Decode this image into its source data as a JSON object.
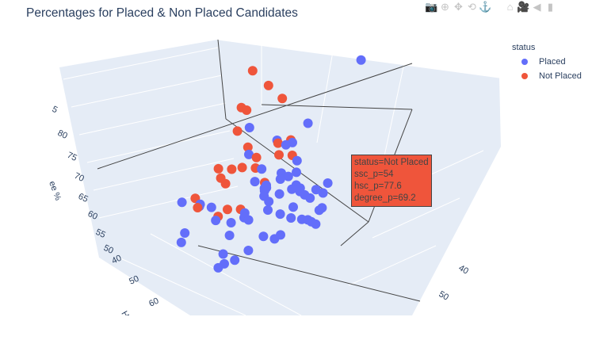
{
  "title": "Percentages for Placed & Non Placed Candidates",
  "modebar": [
    {
      "name": "camera-icon",
      "glyph": "📷"
    },
    {
      "name": "zoom-icon",
      "glyph": "⊕"
    },
    {
      "name": "pan-icon",
      "glyph": "✥"
    },
    {
      "name": "orbit-rotation-icon",
      "glyph": "⟲"
    },
    {
      "name": "turntable-icon",
      "glyph": "⚓"
    },
    {
      "name": "home-icon",
      "glyph": "⌂"
    },
    {
      "name": "camera-reset-icon",
      "glyph": "🎥"
    },
    {
      "name": "hover-tag-icon",
      "glyph": "◀"
    },
    {
      "name": "plotly-logo-icon",
      "glyph": "▮"
    }
  ],
  "tooltip": {
    "line1": "status=Not Placed",
    "line2": "ssc_p=54",
    "line3": "hsc_p=77.6",
    "line4": "degree_p=69.2"
  },
  "chart_data": {
    "type": "scatter3d",
    "title": "Percentages for Placed & Non Placed Candidates",
    "axes": {
      "degree_p": {
        "title_visible": "ee %",
        "ticks": [
          "5",
          "80",
          "75",
          "70",
          "65",
          "60",
          "55",
          "50"
        ]
      },
      "hsc_p": {
        "title_visible": "Hi",
        "ticks": [
          "40",
          "50",
          "60"
        ]
      },
      "ssc_p": {
        "ticks": [
          "40",
          "50"
        ]
      }
    },
    "legend": {
      "title": "status",
      "placement": "top-right",
      "entries": [
        {
          "name": "Placed",
          "color": "#636efa"
        },
        {
          "name": "Not Placed",
          "color": "#ef553b"
        }
      ]
    },
    "series": [
      {
        "name": "Placed",
        "color": "#636efa",
        "points": [
          [
            85,
            50,
            88
          ],
          [
            70,
            68,
            76
          ],
          [
            75,
            73,
            73
          ],
          [
            62,
            55,
            67
          ],
          [
            60,
            45,
            65
          ],
          [
            58,
            65,
            66
          ],
          [
            65,
            65,
            62
          ],
          [
            72,
            68,
            60
          ],
          [
            55,
            60,
            58
          ],
          [
            63,
            70,
            64
          ],
          [
            68,
            75,
            70
          ],
          [
            70,
            63,
            64
          ],
          [
            80,
            60,
            65
          ],
          [
            66,
            58,
            63
          ],
          [
            64,
            71,
            66
          ],
          [
            67,
            67,
            67
          ],
          [
            73,
            80,
            71
          ],
          [
            77,
            62,
            64
          ],
          [
            78,
            75,
            72
          ],
          [
            61,
            72,
            68
          ],
          [
            82,
            76,
            73
          ],
          [
            69,
            69,
            70
          ],
          [
            59,
            64,
            62
          ],
          [
            74,
            66,
            66
          ],
          [
            71,
            72,
            63
          ],
          [
            79,
            70,
            68
          ],
          [
            83,
            66,
            67
          ],
          [
            65,
            80,
            65
          ],
          [
            57,
            72,
            60
          ],
          [
            60,
            76,
            62
          ],
          [
            52,
            82,
            66
          ],
          [
            50,
            85,
            68
          ],
          [
            48,
            90,
            64
          ],
          [
            45,
            88,
            60
          ],
          [
            62,
            83,
            57
          ],
          [
            55,
            80,
            55
          ],
          [
            58,
            62,
            55
          ],
          [
            66,
            74,
            58
          ],
          [
            72,
            76,
            60
          ],
          [
            76,
            78,
            63
          ],
          [
            68,
            62,
            58
          ],
          [
            80,
            68,
            61
          ],
          [
            85,
            72,
            64
          ],
          [
            88,
            74,
            69
          ],
          [
            73,
            60,
            60
          ],
          [
            69,
            85,
            62
          ],
          [
            62,
            91,
            60
          ],
          [
            66,
            93,
            63
          ],
          [
            57,
            70,
            72
          ],
          [
            54,
            66,
            75
          ],
          [
            60,
            60,
            70
          ],
          [
            76,
            70,
            75
          ],
          [
            86,
            80,
            70
          ],
          [
            90,
            82,
            72
          ],
          [
            48,
            75,
            58
          ],
          [
            50,
            70,
            55
          ],
          [
            44,
            78,
            62
          ],
          [
            42,
            84,
            66
          ],
          [
            64,
            88,
            66
          ],
          [
            81,
            64,
            62
          ]
        ]
      },
      {
        "name": "Not Placed",
        "color": "#ef553b",
        "points": [
          [
            52,
            62,
            85
          ],
          [
            55,
            58,
            80
          ],
          [
            50,
            65,
            78
          ],
          [
            58,
            55,
            76
          ],
          [
            48,
            60,
            74
          ],
          [
            54,
            77.6,
            69.2
          ],
          [
            60,
            70,
            72
          ],
          [
            56,
            72,
            70
          ],
          [
            62,
            62,
            71
          ],
          [
            58,
            68,
            68
          ],
          [
            45,
            70,
            66
          ],
          [
            50,
            75,
            68
          ],
          [
            63,
            57,
            69
          ],
          [
            47,
            66,
            64
          ],
          [
            53,
            80,
            63
          ],
          [
            49,
            85,
            67
          ],
          [
            66,
            60,
            68
          ],
          [
            60,
            66,
            64
          ],
          [
            57,
            74,
            62
          ],
          [
            51,
            73,
            60
          ],
          [
            44,
            80,
            65
          ],
          [
            55,
            68,
            72
          ],
          [
            64,
            64,
            70
          ],
          [
            46,
            62,
            70
          ]
        ]
      }
    ]
  }
}
